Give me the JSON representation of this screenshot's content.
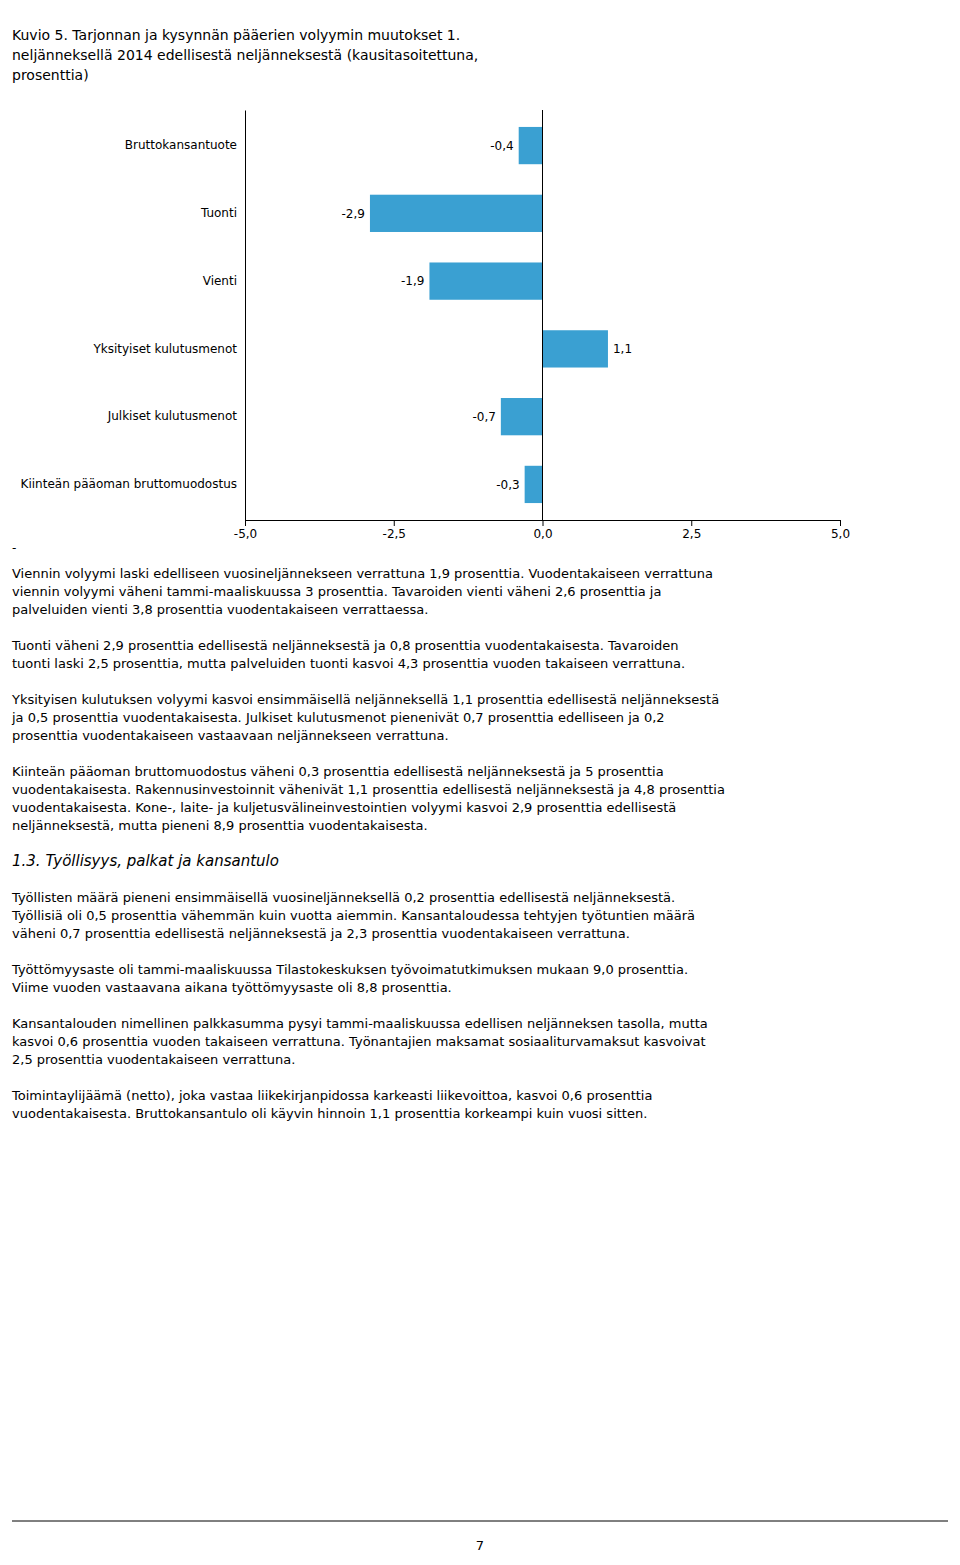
{
  "chart_data": {
    "type": "bar",
    "orientation": "horizontal",
    "title": [
      "Kuvio 5. Tarjonnan ja kysynnän pääerien volyymin muutokset 1.",
      "neljänneksellä 2014 edellisestä neljänneksestä (kausitasoitettuna,",
      "prosenttia)"
    ],
    "categories": [
      "Bruttokansantuote",
      "Tuonti",
      "Vienti",
      "Yksityiset kulutusmenot",
      "Julkiset kulutusmenot",
      "Kiinteän pääoman bruttomuodostus"
    ],
    "values": [
      -0.4,
      -2.9,
      -1.9,
      1.1,
      -0.7,
      -0.3
    ],
    "value_labels": [
      "-0,4",
      "-2,9",
      "-1,9",
      "1,1",
      "-0,7",
      "-0,3"
    ],
    "data_labels": true,
    "color": "#3aa0d2",
    "xlim": [
      -5.0,
      5.0
    ],
    "xticks": [
      {
        "value": -5.0,
        "label": "-5,0"
      },
      {
        "value": -2.5,
        "label": "-2,5"
      },
      {
        "value": 0.0,
        "label": "0,0"
      },
      {
        "value": 2.5,
        "label": "2,5"
      },
      {
        "value": 5.0,
        "label": "5,0"
      }
    ],
    "grid": false,
    "annotations": [
      [
        "-"
      ],
      [
        "Viennin volyymi laski edelliseen vuosineljännekseen verrattuna 1,9 prosenttia. Vuodentakaiseen verrattuna",
        "viennin volyymi väheni tammi-maaliskuussa 3 prosenttia. Tavaroiden vienti väheni 2,6 prosenttia ja",
        "palveluiden vienti 3,8 prosenttia vuodentakaiseen verrattaessa."
      ],
      [
        "Tuonti väheni 2,9 prosenttia edellisestä neljänneksestä ja 0,8 prosenttia vuodentakaisesta. Tavaroiden",
        "tuonti laski 2,5 prosenttia, mutta palveluiden tuonti kasvoi 4,3 prosenttia vuoden takaiseen verrattuna."
      ],
      [
        "Yksityisen kulutuksen volyymi kasvoi ensimmäisellä neljänneksellä 1,1 prosenttia edellisestä neljänneksestä",
        "ja 0,5 prosenttia vuodentakaisesta. Julkiset kulutusmenot pienenivät 0,7 prosenttia edelliseen ja 0,2",
        "prosenttia vuodentakaiseen vastaavaan neljännekseen verrattuna."
      ],
      [
        "Kiinteän pääoman bruttomuodostus väheni 0,3 prosenttia edellisestä neljänneksestä ja 5 prosenttia",
        "vuodentakaisesta. Rakennusinvestoinnit vähenivät 1,1 prosenttia edellisestä neljänneksestä ja 4,8 prosenttia",
        "vuodentakaisesta. Kone-, laite- ja kuljetusvälineinvestointien volyymi kasvoi 2,9 prosenttia edellisestä",
        "neljänneksestä, mutta pieneni 8,9 prosenttia vuodentakaisesta."
      ],
      [
        "1.3. Työllisyys, palkat ja kansantulo"
      ],
      [
        "Työllisten määrä pieneni ensimmäisellä vuosineljänneksellä 0,2 prosenttia edellisestä neljänneksestä.",
        "Työllisiä oli 0,5 prosenttia vähemmän kuin vuotta aiemmin. Kansantaloudessa tehtyjen työtuntien määrä",
        "väheni 0,7 prosenttia edellisestä neljänneksestä ja 2,3 prosenttia vuodentakaiseen verrattuna."
      ],
      [
        "Työttömyysaste oli tammi-maaliskuussa Tilastokeskuksen työvoimatutkimuksen mukaan 9,0 prosenttia.",
        "Viime vuoden vastaavana aikana työttömyysaste oli 8,8 prosenttia."
      ],
      [
        "Kansantalouden nimellinen palkkasumma pysyi tammi-maaliskuussa edellisen neljänneksen tasolla, mutta",
        "kasvoi 0,6 prosenttia vuoden takaiseen verrattuna. Työnantajien maksamat sosiaaliturvamaksut kasvoivat",
        "2,5 prosenttia vuodentakaiseen verrattuna."
      ],
      [
        "Toimintaylijäämä (netto), joka vastaa liikekirjanpidossa karkeasti liikevoittoa, kasvoi 0,6 prosenttia",
        "vuodentakaisesta. Bruttokansantulo oli käyvin hinnoin 1,1 prosenttia korkeampi kuin vuosi sitten."
      ],
      [
        "7"
      ]
    ]
  }
}
